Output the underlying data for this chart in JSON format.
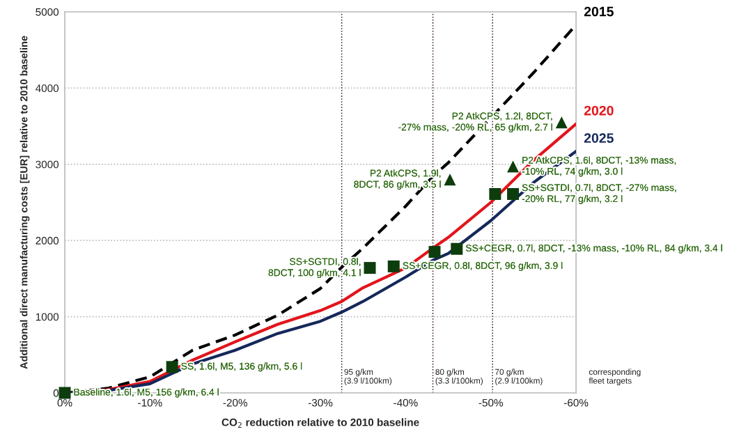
{
  "chart_data": {
    "type": "line",
    "xlabel": "CO$_{2}$ reduction relative to 2010 baseline",
    "ylabel": "Additional direct manufacturing costs [EUR] relative to 2010 baseline",
    "xlim": [
      0,
      -60
    ],
    "xticks": [
      {
        "value": 0,
        "label": "0%"
      },
      {
        "value": -10,
        "label": "-10%"
      },
      {
        "value": -20,
        "label": "-20%"
      },
      {
        "value": -30,
        "label": "-30%"
      },
      {
        "value": -40,
        "label": "-40%"
      },
      {
        "value": -50,
        "label": "-50%"
      },
      {
        "value": -60,
        "label": "-60%"
      }
    ],
    "ylim": [
      0,
      5000
    ],
    "yticks": [
      0,
      1000,
      2000,
      3000,
      4000,
      5000
    ],
    "grid": "y",
    "legend": false,
    "x": [
      0,
      -5,
      -10,
      -15,
      -20,
      -25,
      -30,
      -32.5,
      -35,
      -40,
      -43.2,
      -45,
      -50,
      -55,
      -60
    ],
    "series": [
      {
        "name": "2015",
        "color": "#000000",
        "line_style": "dashed",
        "values": [
          0,
          60,
          210,
          560,
          760,
          1020,
          1370,
          1650,
          1900,
          2450,
          2840,
          3020,
          3610,
          4200,
          4830
        ]
      },
      {
        "name": "2020",
        "color": "#e3141b",
        "line_style": "solid",
        "values": [
          0,
          40,
          150,
          430,
          670,
          900,
          1080,
          1200,
          1380,
          1640,
          1900,
          2040,
          2500,
          3050,
          3530
        ]
      },
      {
        "name": "2025",
        "color": "#14285a",
        "line_style": "solid",
        "values": [
          0,
          30,
          120,
          380,
          560,
          780,
          940,
          1060,
          1200,
          1520,
          1740,
          1830,
          2260,
          2760,
          3170
        ]
      },
      {
        "type": "scatter",
        "marker": "square",
        "color": "#0d3d0d",
        "x": [
          0,
          -12.6,
          -35.8,
          -38.6,
          -43.4,
          -46.0,
          -50.5,
          -52.6
        ],
        "values": [
          0,
          340,
          1640,
          1660,
          1850,
          1890,
          2610,
          2610
        ]
      },
      {
        "type": "scatter",
        "marker": "triangle",
        "color": "#0d3d0d",
        "x": [
          -45.2,
          -52.6,
          -58.3
        ],
        "values": [
          2800,
          2970,
          3550
        ]
      }
    ],
    "ref_lines": [
      {
        "axis": "x",
        "value": -32.5,
        "label": "95 g/km\n(3.9 l/100km)",
        "color": "#1a1a3a",
        "line_style": "dotted"
      },
      {
        "axis": "x",
        "value": -43.2,
        "label": "80 g/km\n(3.3 l/100km)",
        "color": "#3a1a1a",
        "line_style": "dotted"
      },
      {
        "axis": "x",
        "value": -50.2,
        "label": "70 g/km\n(2.9 l/100km)",
        "color": "#3a1a1a",
        "line_style": "dotted"
      }
    ],
    "annotations": [
      {
        "text": "Baseline, 1.6l, M5, 156 g/km, 6.4 l",
        "x": 0,
        "y": 0
      },
      {
        "text": "SS, 1.6l, M5, 136 g/km, 5.6 l",
        "x": -12.6,
        "y": 340
      },
      {
        "text": "SS+SGTDI, 0.8l,\n8DCT, 100 g/km, 4.1 l",
        "x": -35.8,
        "y": 1640
      },
      {
        "text": "SS+CEGR, 0.8l, 8DCT, 96 g/km, 3.9 l",
        "x": -38.6,
        "y": 1660
      },
      {
        "text": "SS+CEGR, 0.7l, 8DCT, -13% mass, -10% RL, 84 g/km, 3.4 l",
        "x": -46.0,
        "y": 1890
      },
      {
        "text": "SS+SGTDI, 0.7l, 8DCT, -27% mass,\n-20% RL, 77 g/km, 3.2 l",
        "x": -52.6,
        "y": 2610
      },
      {
        "text": "P2 AtkCPS, 1.6l, 8DCT, -13% mass,\n-10% RL, 74 g/km, 3.0 l",
        "x": -52.6,
        "y": 2970
      },
      {
        "text": "P2 AtkCPS, 1.9l,\n8DCT, 86 g/km, 3.5 l",
        "x": -45.2,
        "y": 2800
      },
      {
        "text": "P2 AtkCPS, 1.2l, 8DCT,\n-27% mass, -20% RL, 65 g/km, 2.7 l",
        "x": -58.3,
        "y": 3550
      },
      "corresponding\nfleet targets"
    ]
  }
}
